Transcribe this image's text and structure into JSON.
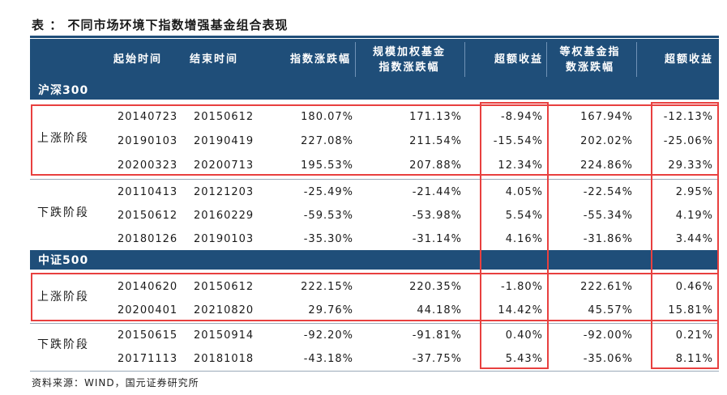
{
  "title": "表 ： 不同市场环境下指数增强基金组合表现",
  "headers": {
    "start": "起始时间",
    "end": "结束时间",
    "index_change": "指数涨跌幅",
    "scale_weighted_line1": "规模加权基金",
    "scale_weighted_line2": "指数涨跌幅",
    "excess1": "超额收益",
    "equal_weighted_line1": "等权基金指",
    "equal_weighted_line2": "数涨跌幅",
    "excess2": "超额收益"
  },
  "sections": [
    {
      "name": "沪深300",
      "groups": [
        {
          "stage": "上涨阶段",
          "rows": [
            [
              "20140723",
              "20150612",
              "180.07%",
              "171.13%",
              "-8.94%",
              "167.94%",
              "-12.13%"
            ],
            [
              "20190103",
              "20190419",
              "227.08%",
              "211.54%",
              "-15.54%",
              "202.02%",
              "-25.06%"
            ],
            [
              "20200323",
              "20200713",
              "195.53%",
              "207.88%",
              "12.34%",
              "224.86%",
              "29.33%"
            ]
          ]
        },
        {
          "stage": "下跌阶段",
          "rows": [
            [
              "20110413",
              "20121203",
              "-25.49%",
              "-21.44%",
              "4.05%",
              "-22.54%",
              "2.95%"
            ],
            [
              "20150612",
              "20160229",
              "-59.53%",
              "-53.98%",
              "5.54%",
              "-55.34%",
              "4.19%"
            ],
            [
              "20180126",
              "20190103",
              "-35.30%",
              "-31.14%",
              "4.16%",
              "-31.86%",
              "3.44%"
            ]
          ]
        }
      ]
    },
    {
      "name": "中证500",
      "groups": [
        {
          "stage": "上涨阶段",
          "rows": [
            [
              "20140620",
              "20150612",
              "222.15%",
              "220.35%",
              "-1.80%",
              "222.61%",
              "0.46%"
            ],
            [
              "20200401",
              "20210820",
              "29.76%",
              "44.18%",
              "14.42%",
              "45.57%",
              "15.81%"
            ]
          ]
        },
        {
          "stage": "下跌阶段",
          "rows": [
            [
              "20150615",
              "20150914",
              "-92.20%",
              "-91.81%",
              "0.40%",
              "-92.00%",
              "0.21%"
            ],
            [
              "20171113",
              "20181018",
              "-43.18%",
              "-37.75%",
              "5.43%",
              "-35.06%",
              "8.11%"
            ]
          ]
        }
      ]
    }
  ],
  "source": "资料来源：WIND，国元证券研究所",
  "colors": {
    "header_bg": "#1f4e79",
    "highlight": "#e8403f",
    "text": "#1a1a1a"
  }
}
